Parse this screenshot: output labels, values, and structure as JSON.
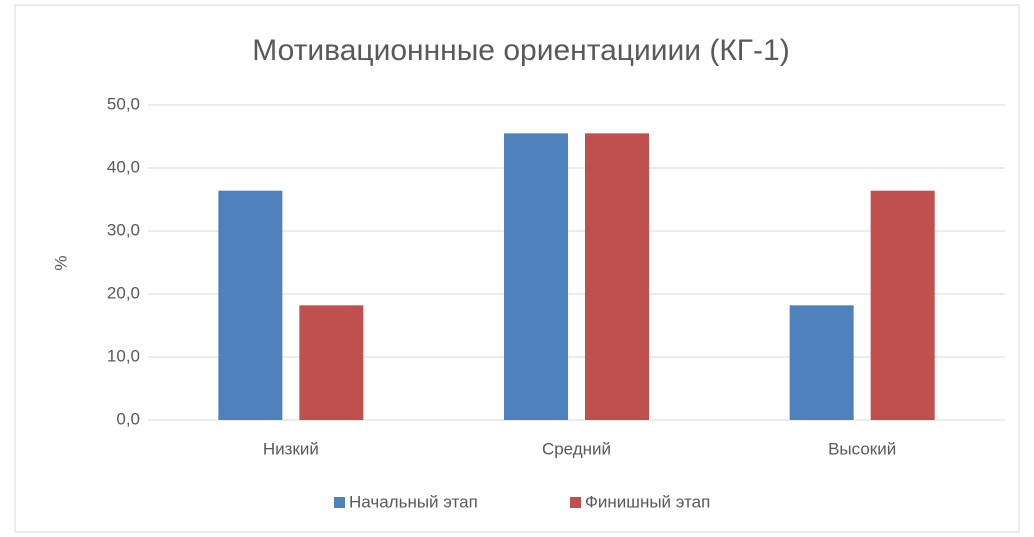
{
  "chart_data": {
    "type": "bar",
    "title": "Мотивационнные ориентацииии (КГ-1)",
    "y_label": "%",
    "categories": [
      "Низкий",
      "Средний",
      "Высокий"
    ],
    "series": [
      {
        "name": "Начальный этап",
        "color": "#4f81bd",
        "values": [
          36.4,
          45.5,
          18.2
        ]
      },
      {
        "name": "Финишный этап",
        "color": "#c0504d",
        "values": [
          18.2,
          45.5,
          36.4
        ]
      }
    ],
    "ylim": [
      0,
      50
    ],
    "yticks": [
      {
        "value": 0,
        "label": "0,0"
      },
      {
        "value": 10,
        "label": "10,0"
      },
      {
        "value": 20,
        "label": "20,0"
      },
      {
        "value": 30,
        "label": "30,0"
      },
      {
        "value": 40,
        "label": "40,0"
      },
      {
        "value": 50,
        "label": "50,0"
      }
    ],
    "grid": true,
    "legend": "bottom"
  }
}
